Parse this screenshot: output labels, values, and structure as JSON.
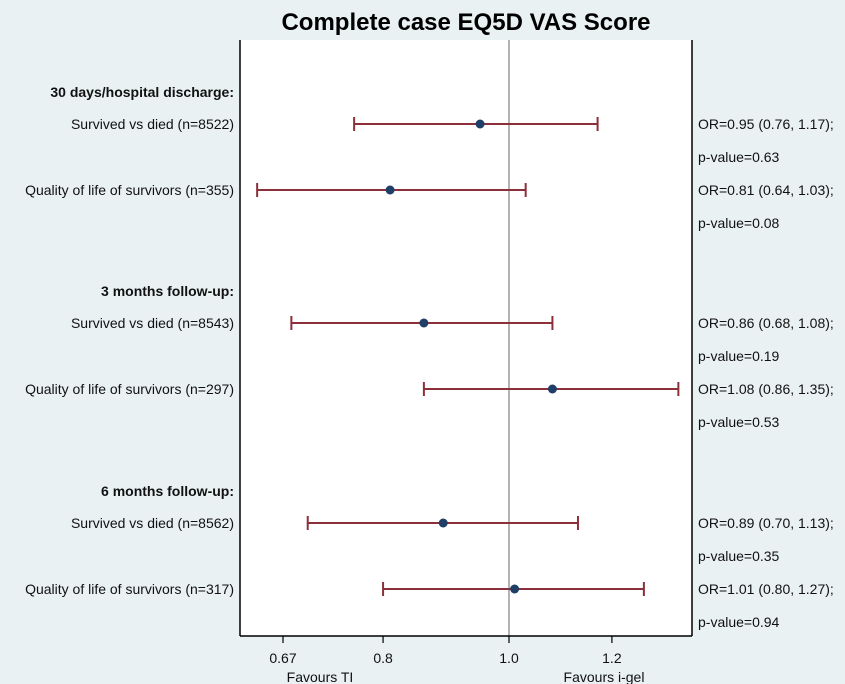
{
  "chart_data": {
    "type": "forest",
    "title": "Complete case EQ5D VAS Score",
    "x_scale": "log",
    "xlim": [
      0.6,
      1.4
    ],
    "reference_line": 1.0,
    "xticks": [
      {
        "value": 0.67,
        "label": "0.67"
      },
      {
        "value": 0.8,
        "label": "0.8"
      },
      {
        "value": 1.0,
        "label": "1.0"
      },
      {
        "value": 1.2,
        "label": "1.2"
      }
    ],
    "favours_left": "Favours TI",
    "favours_right": "Favours i-gel",
    "grid": false,
    "colors": {
      "ci": "#8b2f3a",
      "point": "#1f3f66",
      "ref": "#9a9a9a",
      "plot_bg": "#ffffff",
      "page_bg": "#e9f1f3"
    },
    "groups": [
      {
        "label": "30 days/hospital discharge:",
        "rows": [
          {
            "label": "Survived vs died (n=8522)",
            "or": 0.95,
            "lo": 0.76,
            "hi": 1.17,
            "or_text": "OR=0.95 (0.76, 1.17);",
            "p_text": "p-value=0.63"
          },
          {
            "label": "Quality of life of survivors (n=355)",
            "or": 0.81,
            "lo": 0.64,
            "hi": 1.03,
            "or_text": "OR=0.81 (0.64, 1.03);",
            "p_text": "p-value=0.08"
          }
        ]
      },
      {
        "label": "3 months follow-up:",
        "rows": [
          {
            "label": "Survived vs died (n=8543)",
            "or": 0.86,
            "lo": 0.68,
            "hi": 1.08,
            "or_text": "OR=0.86 (0.68, 1.08);",
            "p_text": "p-value=0.19"
          },
          {
            "label": "Quality of life of survivors (n=297)",
            "or": 1.08,
            "lo": 0.86,
            "hi": 1.35,
            "or_text": "OR=1.08 (0.86, 1.35);",
            "p_text": "p-value=0.53"
          }
        ]
      },
      {
        "label": "6 months follow-up:",
        "rows": [
          {
            "label": "Survived vs died (n=8562)",
            "or": 0.89,
            "lo": 0.7,
            "hi": 1.13,
            "or_text": "OR=0.89 (0.70, 1.13);",
            "p_text": "p-value=0.35"
          },
          {
            "label": "Quality of life of survivors (n=317)",
            "or": 1.01,
            "lo": 0.8,
            "hi": 1.27,
            "or_text": "OR=1.01 (0.80, 1.27);",
            "p_text": "p-value=0.94"
          }
        ]
      }
    ]
  }
}
